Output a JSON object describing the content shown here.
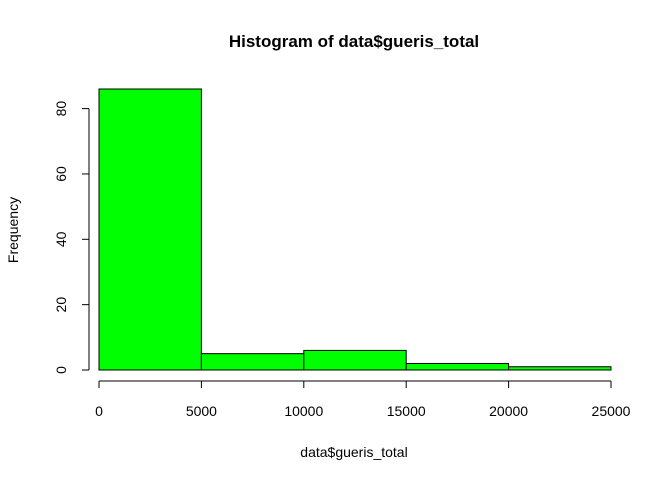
{
  "chart_data": {
    "type": "bar",
    "title": "Histogram of data$gueris_total",
    "xlabel": "data$gueris_total",
    "ylabel": "Frequency",
    "bins": [
      {
        "from": 0,
        "to": 5000,
        "count": 86
      },
      {
        "from": 5000,
        "to": 10000,
        "count": 5
      },
      {
        "from": 10000,
        "to": 15000,
        "count": 6
      },
      {
        "from": 15000,
        "to": 20000,
        "count": 2
      },
      {
        "from": 20000,
        "to": 25000,
        "count": 1
      }
    ],
    "xlim": [
      0,
      25000
    ],
    "ylim": [
      0,
      86
    ],
    "x_ticks": [
      0,
      5000,
      10000,
      15000,
      20000,
      25000
    ],
    "x_tick_labels": [
      "0",
      "5000",
      "10000",
      "15000",
      "20000",
      "25000"
    ],
    "y_ticks": [
      0,
      20,
      40,
      60,
      80
    ],
    "y_tick_labels": [
      "0",
      "20",
      "40",
      "60",
      "80"
    ],
    "bar_color": "#00ff00",
    "bar_border_color": "#000000",
    "grid": false,
    "legend": "none"
  }
}
